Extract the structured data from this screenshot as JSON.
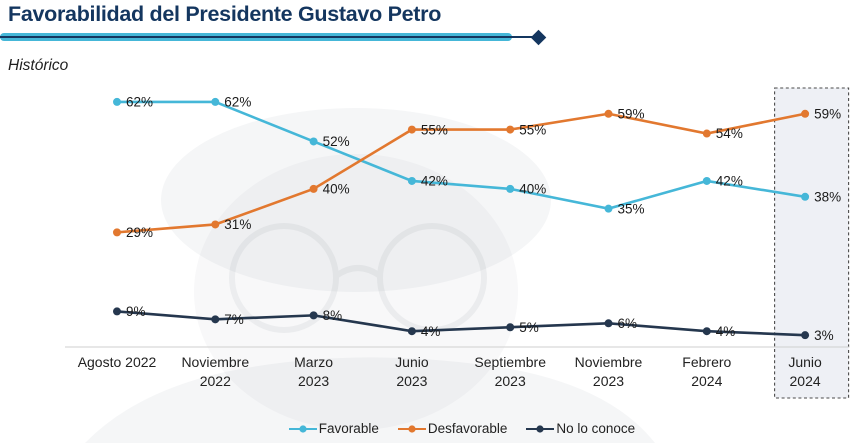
{
  "header": {
    "title": "Favorabilidad del Presidente Gustavo Petro",
    "subtitle": "Histórico"
  },
  "colors": {
    "title_navy": "#14365f",
    "accent_cyan": "#45b7d8",
    "favorable": "#45b7d8",
    "desfavorable": "#e2782f",
    "no_lo_conoce": "#25374e",
    "highlight_box_bg": "#eef0f5",
    "highlight_box_border": "#4a4a4a",
    "axis_line": "#cfcfcf"
  },
  "chart_data": {
    "type": "line",
    "title": "Favorabilidad del Presidente Gustavo Petro",
    "subtitle": "Histórico",
    "categories": [
      [
        "Agosto 2022"
      ],
      [
        "Noviembre",
        "2022"
      ],
      [
        "Marzo",
        "2023"
      ],
      [
        "Junio",
        "2023"
      ],
      [
        "Septiembre",
        "2023"
      ],
      [
        "Noviembre",
        "2023"
      ],
      [
        "Febrero",
        "2024"
      ],
      [
        "Junio",
        "2024"
      ]
    ],
    "series": [
      {
        "name": "Favorable",
        "color": "#45b7d8",
        "values": [
          62,
          62,
          52,
          42,
          40,
          35,
          42,
          38
        ]
      },
      {
        "name": "Desfavorable",
        "color": "#e2782f",
        "values": [
          29,
          31,
          40,
          55,
          55,
          59,
          54,
          59
        ]
      },
      {
        "name": "No lo conoce",
        "color": "#25374e",
        "values": [
          9,
          7,
          8,
          4,
          5,
          6,
          4,
          3
        ]
      }
    ],
    "value_suffix": "%",
    "highlighted_category_index": 7,
    "ylim": [
      0,
      70
    ],
    "grid": false,
    "legend_position": "bottom"
  }
}
